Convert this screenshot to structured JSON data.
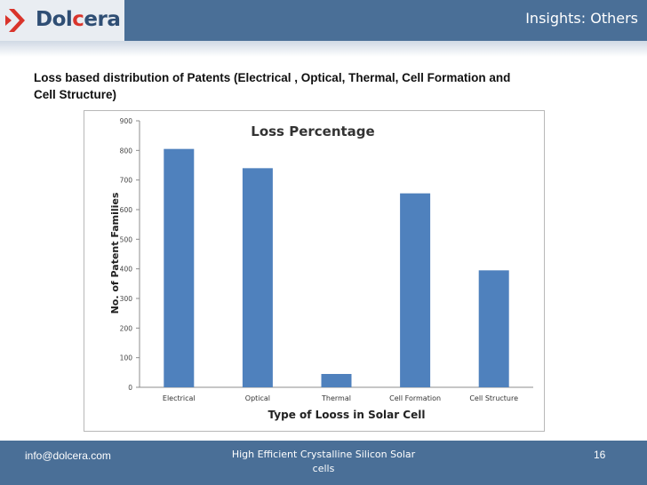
{
  "header": {
    "logo_text_1": "Dol",
    "logo_text_2": "c",
    "logo_text_3": "era",
    "title": "Insights: Others",
    "colors": {
      "bar": "#4a6f97",
      "logo_accent": "#d9342b"
    }
  },
  "slide": {
    "title_line1": "Loss based distribution of Patents (Electrical , Optical, Thermal, Cell Formation and",
    "title_line2": "Cell Structure)"
  },
  "chart_data": {
    "type": "bar",
    "title": "Loss Percentage",
    "xlabel": "Type of Looss in Solar Cell",
    "ylabel": "No. of Patent Families",
    "categories": [
      "Electrical",
      "Optical",
      "Thermal",
      "Cell Formation",
      "Cell Structure"
    ],
    "values": [
      805,
      740,
      45,
      655,
      395
    ],
    "ylim": [
      0,
      900
    ],
    "yticks": [
      0,
      100,
      200,
      300,
      400,
      500,
      600,
      700,
      800,
      900
    ],
    "bar_color": "#4f81bd",
    "grid": false,
    "legend": "none"
  },
  "footer": {
    "email": "info@dolcera.com",
    "center_line1": "High Efficient Crystalline Silicon Solar",
    "center_line2": "cells",
    "page": "16"
  }
}
